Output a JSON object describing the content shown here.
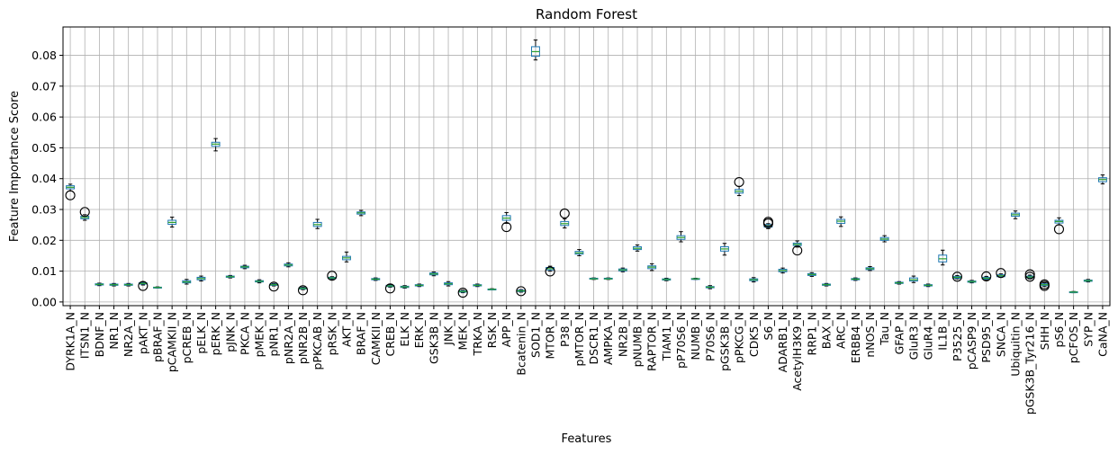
{
  "chart_data": {
    "type": "box",
    "title": "Random Forest",
    "xlabel": "Features",
    "ylabel": "Feature Importance Score",
    "ylim": [
      -0.0012,
      0.0892
    ],
    "yticks": [
      0.0,
      0.01,
      0.02,
      0.03,
      0.04,
      0.05,
      0.06,
      0.07,
      0.08
    ],
    "ytick_labels": [
      "0.00",
      "0.01",
      "0.02",
      "0.03",
      "0.04",
      "0.05",
      "0.06",
      "0.07",
      "0.08"
    ],
    "grid": true,
    "colors": {
      "box": "#1f77b4",
      "median": "#2ca02c",
      "outlier": "#000000",
      "grid": "#b0b0b0"
    },
    "categories": [
      "DYRK1A_N",
      "ITSN1_N",
      "BDNF_N",
      "NR1_N",
      "NR2A_N",
      "pAKT_N",
      "pBRAF_N",
      "pCAMKII_N",
      "pCREB_N",
      "pELK_N",
      "pERK_N",
      "pJNK_N",
      "PKCA_N",
      "pMEK_N",
      "pNR1_N",
      "pNR2A_N",
      "pNR2B_N",
      "pPKCAB_N",
      "pRSK_N",
      "AKT_N",
      "BRAF_N",
      "CAMKII_N",
      "CREB_N",
      "ELK_N",
      "ERK_N",
      "GSK3B_N",
      "JNK_N",
      "MEK_N",
      "TRKA_N",
      "RSK_N",
      "APP_N",
      "Bcatenin_N",
      "SOD1_N",
      "MTOR_N",
      "P38_N",
      "pMTOR_N",
      "DSCR1_N",
      "AMPKA_N",
      "NR2B_N",
      "pNUMB_N",
      "RAPTOR_N",
      "TIAM1_N",
      "pP70S6_N",
      "NUMB_N",
      "P70S6_N",
      "pGSK3B_N",
      "pPKCG_N",
      "CDK5_N",
      "S6_N",
      "ADARB1_N",
      "AcetylH3K9_N",
      "RRP1_N",
      "BAX_N",
      "ARC_N",
      "ERBB4_N",
      "nNOS_N",
      "Tau_N",
      "GFAP_N",
      "GluR3_N",
      "GluR4_N",
      "IL1B_N",
      "P3525_N",
      "pCASP9_N",
      "PSD95_N",
      "SNCA_N",
      "Ubiquitin_N",
      "pGSK3B_Tyr216_N",
      "SHH_N",
      "pS6_N",
      "pCFOS_N",
      "SYP_N",
      "CaNA_N"
    ],
    "series": [
      {
        "stats": [
          {
            "min": 0.036,
            "q1": 0.0367,
            "median": 0.0372,
            "q3": 0.0377,
            "max": 0.0382,
            "outliers": [
              0.0346
            ]
          },
          {
            "min": 0.0265,
            "q1": 0.027,
            "median": 0.0274,
            "q3": 0.0278,
            "max": 0.0283,
            "outliers": [
              0.0292
            ]
          },
          {
            "min": 0.0053,
            "q1": 0.0055,
            "median": 0.0057,
            "q3": 0.0059,
            "max": 0.0061,
            "outliers": []
          },
          {
            "min": 0.0052,
            "q1": 0.0054,
            "median": 0.0056,
            "q3": 0.0058,
            "max": 0.006,
            "outliers": []
          },
          {
            "min": 0.0052,
            "q1": 0.0054,
            "median": 0.0056,
            "q3": 0.0058,
            "max": 0.006,
            "outliers": []
          },
          {
            "min": 0.0055,
            "q1": 0.0058,
            "median": 0.006,
            "q3": 0.0062,
            "max": 0.0064,
            "outliers": [
              0.0052
            ]
          },
          {
            "min": 0.0045,
            "q1": 0.0046,
            "median": 0.0047,
            "q3": 0.0048,
            "max": 0.0049,
            "outliers": []
          },
          {
            "min": 0.0243,
            "q1": 0.0252,
            "median": 0.0258,
            "q3": 0.0265,
            "max": 0.0275,
            "outliers": []
          },
          {
            "min": 0.0058,
            "q1": 0.0062,
            "median": 0.0065,
            "q3": 0.0069,
            "max": 0.0073,
            "outliers": []
          },
          {
            "min": 0.0068,
            "q1": 0.0072,
            "median": 0.0076,
            "q3": 0.008,
            "max": 0.0084,
            "outliers": []
          },
          {
            "min": 0.049,
            "q1": 0.0505,
            "median": 0.0512,
            "q3": 0.0518,
            "max": 0.053,
            "outliers": []
          },
          {
            "min": 0.0078,
            "q1": 0.008,
            "median": 0.0082,
            "q3": 0.0084,
            "max": 0.0086,
            "outliers": []
          },
          {
            "min": 0.0108,
            "q1": 0.0111,
            "median": 0.0114,
            "q3": 0.0116,
            "max": 0.0119,
            "outliers": []
          },
          {
            "min": 0.0062,
            "q1": 0.0065,
            "median": 0.0067,
            "q3": 0.0069,
            "max": 0.0072,
            "outliers": []
          },
          {
            "min": 0.0052,
            "q1": 0.0054,
            "median": 0.0056,
            "q3": 0.0058,
            "max": 0.006,
            "outliers": [
              0.005
            ]
          },
          {
            "min": 0.0114,
            "q1": 0.0117,
            "median": 0.012,
            "q3": 0.0123,
            "max": 0.0127,
            "outliers": []
          },
          {
            "min": 0.004,
            "q1": 0.0042,
            "median": 0.0044,
            "q3": 0.0046,
            "max": 0.0048,
            "outliers": [
              0.0038
            ]
          },
          {
            "min": 0.0238,
            "q1": 0.0245,
            "median": 0.0251,
            "q3": 0.0258,
            "max": 0.0268,
            "outliers": []
          },
          {
            "min": 0.0073,
            "q1": 0.0076,
            "median": 0.0078,
            "q3": 0.008,
            "max": 0.0082,
            "outliers": [
              0.0085
            ]
          },
          {
            "min": 0.013,
            "q1": 0.0137,
            "median": 0.0143,
            "q3": 0.0148,
            "max": 0.0162,
            "outliers": []
          },
          {
            "min": 0.028,
            "q1": 0.0285,
            "median": 0.0289,
            "q3": 0.0292,
            "max": 0.0297,
            "outliers": []
          },
          {
            "min": 0.007,
            "q1": 0.0072,
            "median": 0.0074,
            "q3": 0.0076,
            "max": 0.0078,
            "outliers": []
          },
          {
            "min": 0.0048,
            "q1": 0.005,
            "median": 0.0052,
            "q3": 0.0054,
            "max": 0.0056,
            "outliers": [
              0.0044
            ]
          },
          {
            "min": 0.0045,
            "q1": 0.0047,
            "median": 0.0049,
            "q3": 0.0051,
            "max": 0.0053,
            "outliers": []
          },
          {
            "min": 0.005,
            "q1": 0.0052,
            "median": 0.0054,
            "q3": 0.0056,
            "max": 0.0058,
            "outliers": []
          },
          {
            "min": 0.0085,
            "q1": 0.0088,
            "median": 0.0091,
            "q3": 0.0094,
            "max": 0.0097,
            "outliers": []
          },
          {
            "min": 0.0052,
            "q1": 0.0056,
            "median": 0.0059,
            "q3": 0.0062,
            "max": 0.0066,
            "outliers": []
          },
          {
            "min": 0.003,
            "q1": 0.0032,
            "median": 0.0034,
            "q3": 0.0036,
            "max": 0.0038,
            "outliers": [
              0.003
            ]
          },
          {
            "min": 0.005,
            "q1": 0.0052,
            "median": 0.0054,
            "q3": 0.0056,
            "max": 0.0058,
            "outliers": []
          },
          {
            "min": 0.0039,
            "q1": 0.004,
            "median": 0.0041,
            "q3": 0.0042,
            "max": 0.0043,
            "outliers": []
          },
          {
            "min": 0.0255,
            "q1": 0.0265,
            "median": 0.0272,
            "q3": 0.028,
            "max": 0.029,
            "outliers": [
              0.0243
            ]
          },
          {
            "min": 0.0032,
            "q1": 0.0034,
            "median": 0.0036,
            "q3": 0.0038,
            "max": 0.004,
            "outliers": [
              0.0035
            ]
          },
          {
            "min": 0.0785,
            "q1": 0.0797,
            "median": 0.0812,
            "q3": 0.0828,
            "max": 0.085,
            "outliers": []
          },
          {
            "min": 0.01,
            "q1": 0.0104,
            "median": 0.0108,
            "q3": 0.0112,
            "max": 0.0116,
            "outliers": [
              0.0099
            ]
          },
          {
            "min": 0.024,
            "q1": 0.0248,
            "median": 0.0254,
            "q3": 0.0261,
            "max": 0.027,
            "outliers": [
              0.0287
            ]
          },
          {
            "min": 0.015,
            "q1": 0.0155,
            "median": 0.0159,
            "q3": 0.0164,
            "max": 0.017,
            "outliers": []
          },
          {
            "min": 0.0073,
            "q1": 0.0074,
            "median": 0.0075,
            "q3": 0.0077,
            "max": 0.0078,
            "outliers": []
          },
          {
            "min": 0.0073,
            "q1": 0.0074,
            "median": 0.0075,
            "q3": 0.0077,
            "max": 0.0078,
            "outliers": []
          },
          {
            "min": 0.0098,
            "q1": 0.0101,
            "median": 0.0104,
            "q3": 0.0107,
            "max": 0.011,
            "outliers": []
          },
          {
            "min": 0.0165,
            "q1": 0.017,
            "median": 0.0174,
            "q3": 0.0179,
            "max": 0.0185,
            "outliers": []
          },
          {
            "min": 0.0102,
            "q1": 0.0108,
            "median": 0.0113,
            "q3": 0.0117,
            "max": 0.0124,
            "outliers": []
          },
          {
            "min": 0.0069,
            "q1": 0.0071,
            "median": 0.0073,
            "q3": 0.0075,
            "max": 0.0077,
            "outliers": []
          },
          {
            "min": 0.0195,
            "q1": 0.0203,
            "median": 0.0209,
            "q3": 0.0215,
            "max": 0.0228,
            "outliers": []
          },
          {
            "min": 0.0073,
            "q1": 0.0074,
            "median": 0.0075,
            "q3": 0.0076,
            "max": 0.0077,
            "outliers": []
          },
          {
            "min": 0.0043,
            "q1": 0.0046,
            "median": 0.0048,
            "q3": 0.005,
            "max": 0.0053,
            "outliers": []
          },
          {
            "min": 0.0152,
            "q1": 0.0165,
            "median": 0.0172,
            "q3": 0.0179,
            "max": 0.019,
            "outliers": []
          },
          {
            "min": 0.0345,
            "q1": 0.0353,
            "median": 0.0359,
            "q3": 0.0365,
            "max": 0.0375,
            "outliers": [
              0.0389
            ]
          },
          {
            "min": 0.0065,
            "q1": 0.0069,
            "median": 0.0072,
            "q3": 0.0075,
            "max": 0.0079,
            "outliers": []
          },
          {
            "min": 0.0238,
            "q1": 0.0243,
            "median": 0.0247,
            "q3": 0.0251,
            "max": 0.0254,
            "outliers": [
              0.0255,
              0.026
            ]
          },
          {
            "min": 0.0094,
            "q1": 0.0098,
            "median": 0.0102,
            "q3": 0.0106,
            "max": 0.011,
            "outliers": []
          },
          {
            "min": 0.0178,
            "q1": 0.0183,
            "median": 0.0187,
            "q3": 0.0191,
            "max": 0.0198,
            "outliers": [
              0.0167
            ]
          },
          {
            "min": 0.0083,
            "q1": 0.0086,
            "median": 0.0089,
            "q3": 0.0092,
            "max": 0.0095,
            "outliers": []
          },
          {
            "min": 0.0052,
            "q1": 0.0054,
            "median": 0.0056,
            "q3": 0.0058,
            "max": 0.006,
            "outliers": []
          },
          {
            "min": 0.0245,
            "q1": 0.0255,
            "median": 0.0262,
            "q3": 0.0268,
            "max": 0.0276,
            "outliers": []
          },
          {
            "min": 0.007,
            "q1": 0.0072,
            "median": 0.0074,
            "q3": 0.0076,
            "max": 0.0078,
            "outliers": []
          },
          {
            "min": 0.0102,
            "q1": 0.0105,
            "median": 0.0108,
            "q3": 0.0111,
            "max": 0.0115,
            "outliers": []
          },
          {
            "min": 0.0195,
            "q1": 0.02,
            "median": 0.0204,
            "q3": 0.0209,
            "max": 0.0215,
            "outliers": []
          },
          {
            "min": 0.0058,
            "q1": 0.006,
            "median": 0.0062,
            "q3": 0.0064,
            "max": 0.0066,
            "outliers": []
          },
          {
            "min": 0.0063,
            "q1": 0.0068,
            "median": 0.0072,
            "q3": 0.0078,
            "max": 0.0084,
            "outliers": []
          },
          {
            "min": 0.005,
            "q1": 0.0052,
            "median": 0.0054,
            "q3": 0.0056,
            "max": 0.0058,
            "outliers": []
          },
          {
            "min": 0.012,
            "q1": 0.013,
            "median": 0.014,
            "q3": 0.0152,
            "max": 0.0168,
            "outliers": []
          },
          {
            "min": 0.0075,
            "q1": 0.0077,
            "median": 0.008,
            "q3": 0.0083,
            "max": 0.0086,
            "outliers": [
              0.0082
            ]
          },
          {
            "min": 0.0062,
            "q1": 0.0064,
            "median": 0.0066,
            "q3": 0.0068,
            "max": 0.007,
            "outliers": []
          },
          {
            "min": 0.0072,
            "q1": 0.0074,
            "median": 0.0077,
            "q3": 0.008,
            "max": 0.0083,
            "outliers": [
              0.0083
            ]
          },
          {
            "min": 0.008,
            "q1": 0.0082,
            "median": 0.0085,
            "q3": 0.0088,
            "max": 0.0091,
            "outliers": [
              0.0094
            ]
          },
          {
            "min": 0.027,
            "q1": 0.0278,
            "median": 0.0283,
            "q3": 0.0288,
            "max": 0.0295,
            "outliers": []
          },
          {
            "min": 0.0075,
            "q1": 0.0078,
            "median": 0.0081,
            "q3": 0.0084,
            "max": 0.0087,
            "outliers": [
              0.0082,
              0.009
            ]
          },
          {
            "min": 0.005,
            "q1": 0.0053,
            "median": 0.0056,
            "q3": 0.0059,
            "max": 0.0062,
            "outliers": [
              0.0052,
              0.0057
            ]
          },
          {
            "min": 0.025,
            "q1": 0.0256,
            "median": 0.0261,
            "q3": 0.0265,
            "max": 0.0273,
            "outliers": [
              0.0236
            ]
          },
          {
            "min": 0.003,
            "q1": 0.0031,
            "median": 0.0032,
            "q3": 0.0033,
            "max": 0.0034,
            "outliers": []
          },
          {
            "min": 0.0065,
            "q1": 0.0067,
            "median": 0.0069,
            "q3": 0.0071,
            "max": 0.0073,
            "outliers": []
          },
          {
            "min": 0.0383,
            "q1": 0.039,
            "median": 0.0397,
            "q3": 0.0403,
            "max": 0.0412,
            "outliers": []
          }
        ]
      }
    ]
  }
}
